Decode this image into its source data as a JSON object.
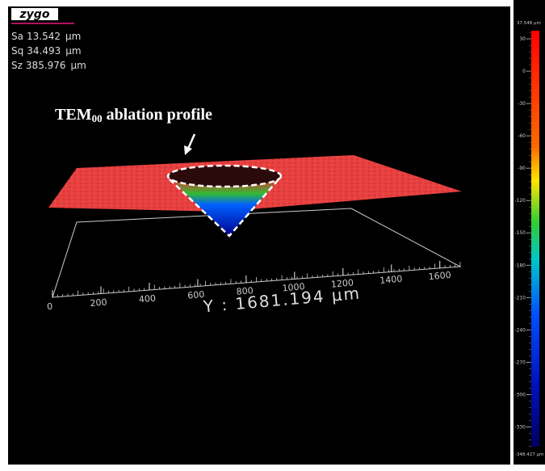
{
  "header": {
    "logo": "zygo"
  },
  "stats": [
    {
      "name": "Sa",
      "value": 13.542,
      "unit": "µm"
    },
    {
      "name": "Sq",
      "value": 34.493,
      "unit": "µm"
    },
    {
      "name": "Sz",
      "value": 385.976,
      "unit": "µm"
    }
  ],
  "annotation": {
    "main": "TEM",
    "subscript": "00",
    "rest": "ablation profile"
  },
  "axis": {
    "tick_labels": [
      0,
      200,
      400,
      600,
      800,
      1000,
      1200,
      1400,
      1600
    ],
    "title": "Y : 1681.194 µm"
  },
  "colorbar": {
    "lim": [
      -348.427,
      37.548
    ],
    "max_label": {
      "value": 37.548,
      "label": "37.548 µm"
    },
    "min_label": {
      "value": -348.427,
      "label": "-348.427 µm"
    },
    "ticks": [
      30,
      0,
      -30,
      -60,
      -90,
      -120,
      -150,
      -180,
      -210,
      -240,
      -270,
      -300,
      -330
    ]
  }
}
